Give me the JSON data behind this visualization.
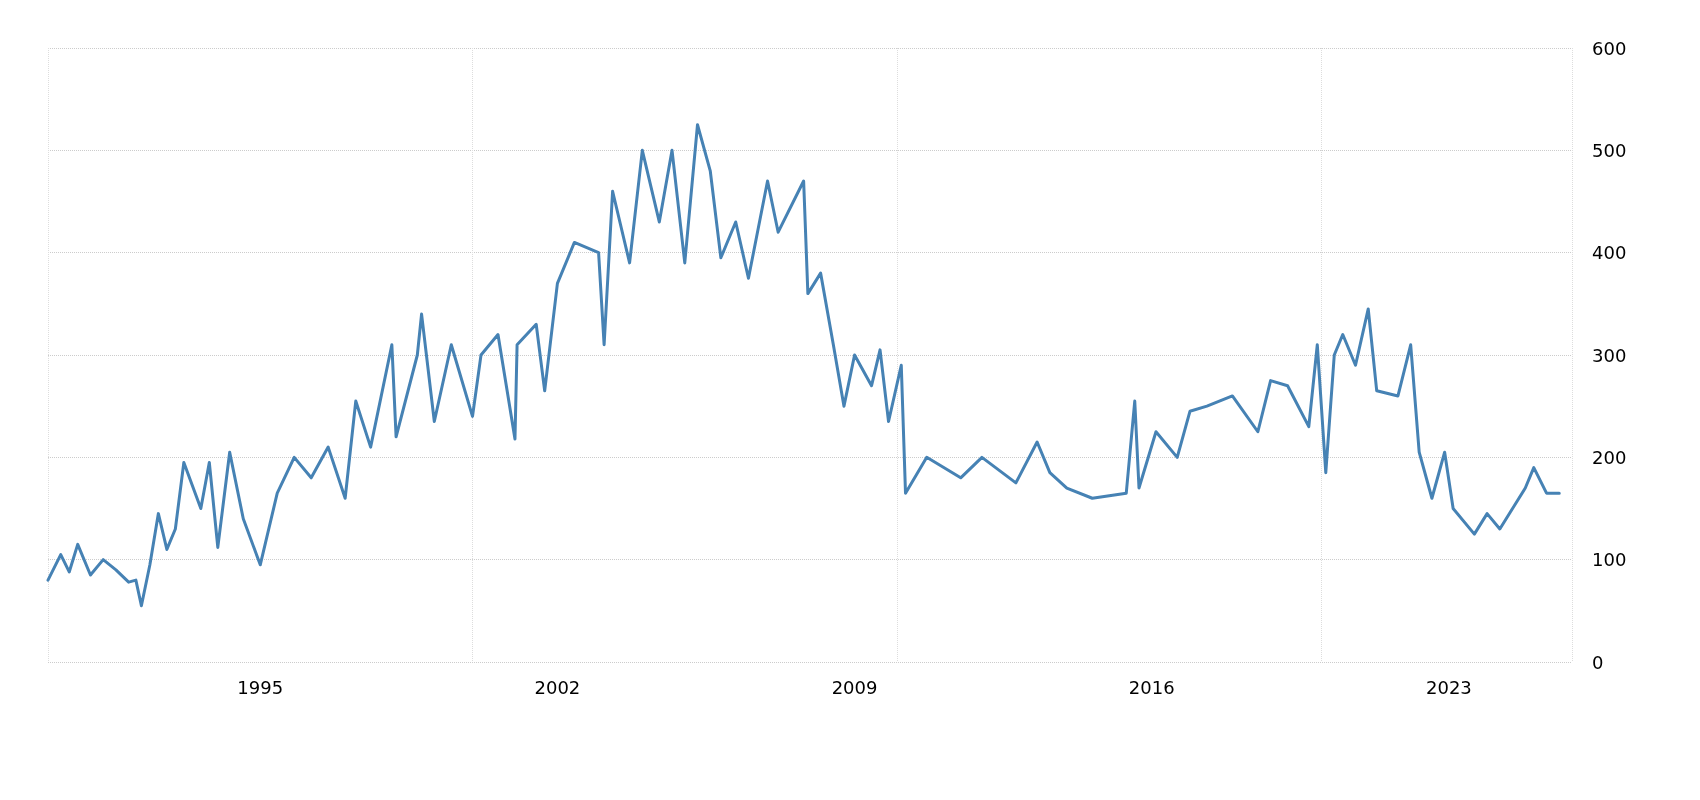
{
  "chart_data": {
    "type": "line",
    "xlim": [
      1990,
      2025.9
    ],
    "xticks": [
      1995,
      2002,
      2009,
      2016,
      2023
    ],
    "ylim": [
      0,
      600
    ],
    "yticks": [
      0,
      100,
      200,
      300,
      400,
      500,
      600
    ],
    "grid": true,
    "marker": "none",
    "line_style": "solid",
    "series": [
      {
        "color": "#4682b4",
        "x": [
          1990.0,
          1990.3,
          1990.5,
          1990.7,
          1991.0,
          1991.3,
          1991.6,
          1991.9,
          1992.07,
          1992.2,
          1992.4,
          1992.6,
          1992.8,
          1993.0,
          1993.2,
          1993.6,
          1993.8,
          1994.0,
          1994.28,
          1994.6,
          1995.0,
          1995.4,
          1995.8,
          1996.2,
          1996.6,
          1997.0,
          1997.25,
          1997.6,
          1998.1,
          1998.2,
          1998.7,
          1998.8,
          1999.1,
          1999.5,
          2000.0,
          2000.2,
          2000.6,
          2001.0,
          2001.05,
          2001.5,
          2001.7,
          2002.0,
          2002.4,
          2002.97,
          2003.1,
          2003.3,
          2003.7,
          2004.0,
          2004.4,
          2004.7,
          2005.0,
          2005.3,
          2005.6,
          2005.85,
          2006.2,
          2006.5,
          2006.95,
          2007.2,
          2007.8,
          2007.9,
          2008.2,
          2008.5,
          2008.75,
          2009.0,
          2009.4,
          2009.6,
          2009.8,
          2010.1,
          2010.2,
          2010.7,
          2011.5,
          2012.0,
          2012.8,
          2013.3,
          2013.6,
          2014.0,
          2014.6,
          2015.4,
          2015.6,
          2015.7,
          2016.1,
          2016.6,
          2016.9,
          2017.3,
          2017.9,
          2018.5,
          2018.8,
          2019.2,
          2019.7,
          2019.9,
          2020.1,
          2020.3,
          2020.5,
          2020.8,
          2021.1,
          2021.3,
          2021.8,
          2022.1,
          2022.3,
          2022.6,
          2022.9,
          2023.1,
          2023.6,
          2023.9,
          2024.2,
          2024.5,
          2024.8,
          2025.0,
          2025.3,
          2025.6
        ],
        "values": [
          80,
          105,
          88,
          115,
          85,
          100,
          90,
          78,
          80,
          55,
          95,
          145,
          110,
          130,
          195,
          150,
          195,
          112,
          205,
          140,
          95,
          165,
          200,
          180,
          210,
          160,
          255,
          210,
          310,
          220,
          300,
          340,
          235,
          310,
          240,
          300,
          320,
          218,
          310,
          330,
          265,
          370,
          410,
          400,
          310,
          460,
          390,
          500,
          430,
          500,
          390,
          525,
          480,
          395,
          430,
          375,
          470,
          420,
          470,
          360,
          380,
          310,
          250,
          300,
          270,
          305,
          235,
          290,
          165,
          200,
          180,
          200,
          175,
          215,
          185,
          170,
          160,
          165,
          255,
          170,
          225,
          200,
          245,
          250,
          260,
          225,
          275,
          270,
          230,
          310,
          185,
          300,
          320,
          290,
          345,
          265,
          260,
          310,
          205,
          160,
          205,
          150,
          125,
          145,
          130,
          150,
          170,
          190,
          165,
          165
        ]
      }
    ]
  }
}
